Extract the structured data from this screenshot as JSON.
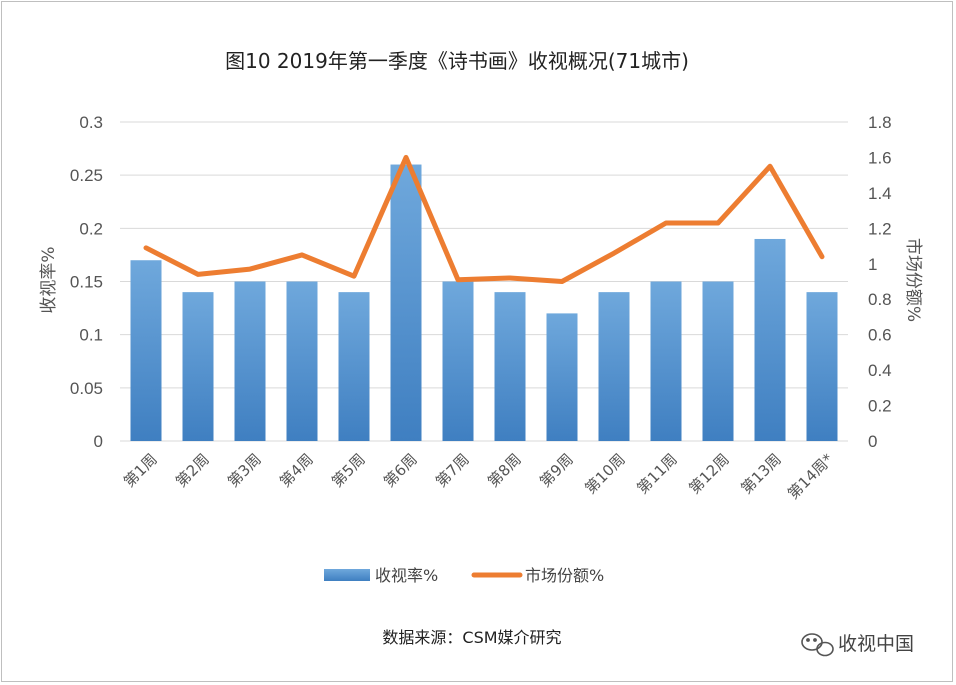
{
  "chart_data": {
    "type": "bar+line",
    "title": "图10  2019年第一季度《诗书画》收视概况(71城市)",
    "categories": [
      "第1周",
      "第2周",
      "第3周",
      "第4周",
      "第5周",
      "第6周",
      "第7周",
      "第8周",
      "第9周",
      "第10周",
      "第11周",
      "第12周",
      "第13周",
      "第14周*"
    ],
    "series": [
      {
        "name": "收视率%",
        "type": "bar",
        "axis": "left",
        "color": "#5b9bd5",
        "values": [
          0.17,
          0.14,
          0.15,
          0.15,
          0.14,
          0.26,
          0.15,
          0.14,
          0.12,
          0.14,
          0.15,
          0.15,
          0.19,
          0.14
        ]
      },
      {
        "name": "市场份额%",
        "type": "line",
        "axis": "right",
        "color": "#ed7d31",
        "values": [
          1.09,
          0.94,
          0.97,
          1.05,
          0.93,
          1.6,
          0.91,
          0.92,
          0.9,
          1.06,
          1.23,
          1.23,
          1.55,
          1.04
        ]
      }
    ],
    "ylabel": "收视率%",
    "ylim": [
      0,
      0.3
    ],
    "yticks": [
      "0",
      "0.05",
      "0.1",
      "0.15",
      "0.2",
      "0.25",
      "0.3"
    ],
    "y2label": "市场份额%",
    "y2lim": [
      0,
      1.8
    ],
    "y2ticks": [
      "0",
      "0.2",
      "0.4",
      "0.6",
      "0.8",
      "1",
      "1.2",
      "1.4",
      "1.6",
      "1.8"
    ],
    "grid": true,
    "legend_position": "bottom",
    "source": "数据来源：CSM媒介研究"
  },
  "watermark": {
    "text": "收视中国",
    "icon": "wechat-icon"
  }
}
